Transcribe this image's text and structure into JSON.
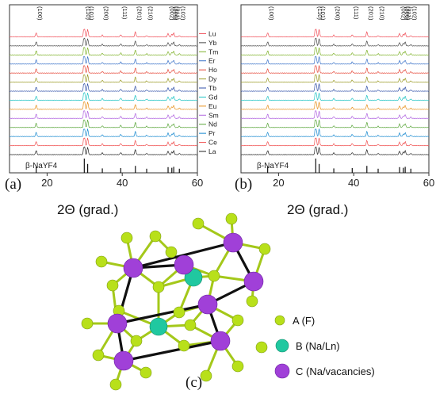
{
  "chart_data": [
    {
      "type": "line",
      "panel_label": "(a)",
      "xlabel": "2Θ (grad.)",
      "xlim": [
        10,
        60
      ],
      "xticks": [
        20,
        40,
        60
      ],
      "reference_label": "β-NaYF4",
      "reference_lines": [
        17.1,
        29.9,
        30.8,
        34.7,
        39.6,
        43.5,
        46.5,
        52.2,
        53.2,
        53.7,
        55.2
      ],
      "peak_labels": [
        {
          "label": "(100)",
          "x": 17.1
        },
        {
          "label": "(110)",
          "x": 29.9
        },
        {
          "label": "(101)",
          "x": 30.8
        },
        {
          "label": "(200)",
          "x": 34.7
        },
        {
          "label": "(111)",
          "x": 39.6
        },
        {
          "label": "(201)",
          "x": 43.5
        },
        {
          "label": "(210)",
          "x": 46.5
        },
        {
          "label": "(002)",
          "x": 52.2
        },
        {
          "label": "(300)",
          "x": 53.2
        },
        {
          "label": "(211)",
          "x": 53.7
        },
        {
          "label": "(102)",
          "x": 55.2
        }
      ],
      "series": [
        {
          "name": "Lu",
          "color": "#f0505a"
        },
        {
          "name": "Yb",
          "color": "#4a4a4a"
        },
        {
          "name": "Tm",
          "color": "#7fb22a"
        },
        {
          "name": "Er",
          "color": "#3a72c8"
        },
        {
          "name": "Ho",
          "color": "#e64a3c"
        },
        {
          "name": "Dy",
          "color": "#9a9a24"
        },
        {
          "name": "Tb",
          "color": "#3050a8"
        },
        {
          "name": "Gd",
          "color": "#22c4c4"
        },
        {
          "name": "Eu",
          "color": "#e8901a"
        },
        {
          "name": "Sm",
          "color": "#b064e0"
        },
        {
          "name": "Nd",
          "color": "#5aa63a"
        },
        {
          "name": "Pr",
          "color": "#1a8ad0"
        },
        {
          "name": "Ce",
          "color": "#f05050"
        },
        {
          "name": "La",
          "color": "#222222"
        }
      ]
    },
    {
      "type": "line",
      "panel_label": "(b)",
      "xlabel": "2Θ (grad.)",
      "xlim": [
        10,
        60
      ],
      "xticks": [
        20,
        40,
        60
      ],
      "reference_label": "β-NaYF4",
      "reference_lines": [
        17.1,
        29.9,
        30.8,
        34.7,
        39.6,
        43.5,
        46.5,
        52.2,
        53.2,
        53.7,
        55.2
      ],
      "peak_labels": [
        {
          "label": "(100)",
          "x": 17.1
        },
        {
          "label": "(110)",
          "x": 29.9
        },
        {
          "label": "(101)",
          "x": 30.8
        },
        {
          "label": "(200)",
          "x": 34.7
        },
        {
          "label": "(111)",
          "x": 39.6
        },
        {
          "label": "(201)",
          "x": 43.5
        },
        {
          "label": "(210)",
          "x": 46.5
        },
        {
          "label": "(002)",
          "x": 52.2
        },
        {
          "label": "(300)",
          "x": 53.2
        },
        {
          "label": "(211)",
          "x": 53.7
        },
        {
          "label": "(102)",
          "x": 55.2
        }
      ],
      "series": [
        {
          "color": "#f0505a"
        },
        {
          "color": "#4a4a4a"
        },
        {
          "color": "#7fb22a"
        },
        {
          "color": "#3a72c8"
        },
        {
          "color": "#e64a3c"
        },
        {
          "color": "#9a9a24"
        },
        {
          "color": "#3050a8"
        },
        {
          "color": "#22c4c4"
        },
        {
          "color": "#e8901a"
        },
        {
          "color": "#b064e0"
        },
        {
          "color": "#5aa63a"
        },
        {
          "color": "#1a8ad0"
        },
        {
          "color": "#f05050"
        },
        {
          "color": "#222222"
        }
      ]
    }
  ],
  "crystal": {
    "panel_label": "(c)",
    "legend": [
      {
        "label": "A (F)",
        "color": "#b8e01a"
      },
      {
        "label": "B (Na/Ln)",
        "color": "#20c8a0"
      },
      {
        "label": "C (Na/vacancies)",
        "color": "#a040d8"
      }
    ]
  }
}
